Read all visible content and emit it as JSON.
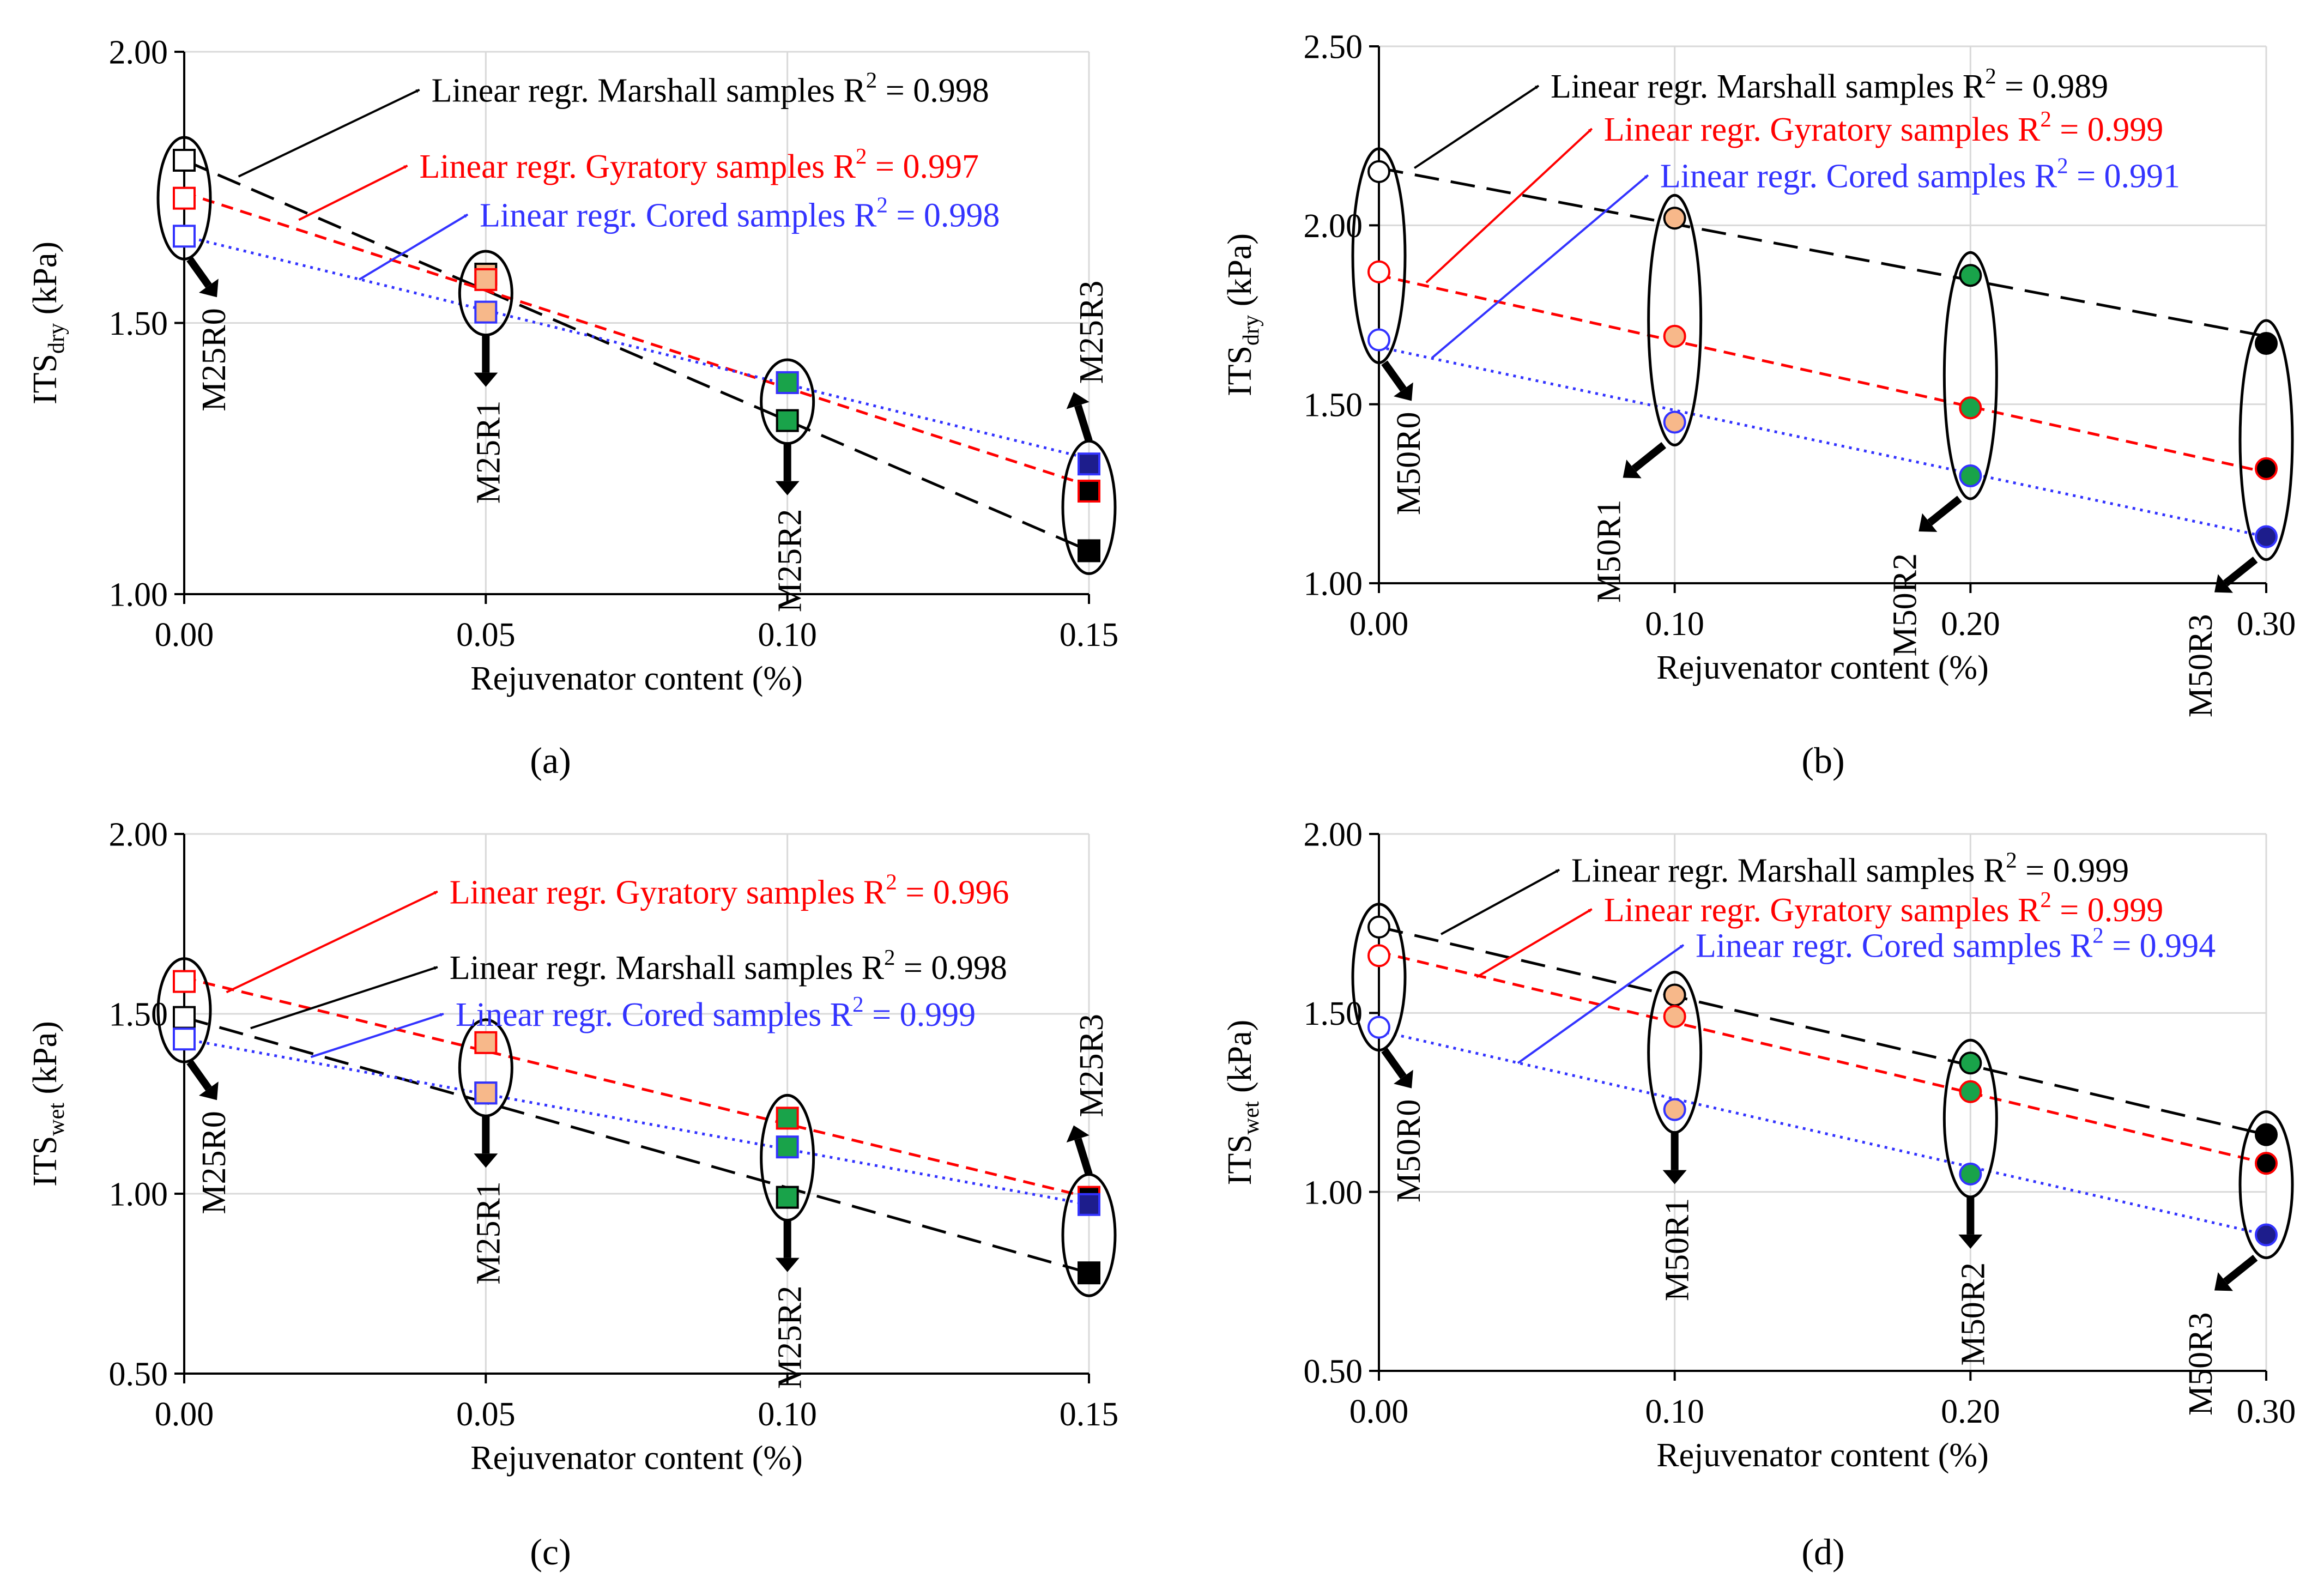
{
  "chart_data": [
    {
      "panel": "a",
      "caption": "(a)",
      "type": "scatter",
      "xlabel": "Rejuvenator content (%)",
      "ylabel_main": "ITS",
      "ylabel_sub": "dry",
      "ylabel_unit": " (kPa)",
      "xlim": [
        0,
        0.15
      ],
      "ylim": [
        1.0,
        2.0
      ],
      "x_ticks": [
        0.0,
        0.05,
        0.1,
        0.15
      ],
      "x_tick_labels": [
        "0.00",
        "0.05",
        "0.10",
        "0.15"
      ],
      "y_ticks": [
        1.0,
        1.5,
        2.0
      ],
      "y_tick_labels": [
        "1.00",
        "1.50",
        "2.00"
      ],
      "grid": true,
      "marker": "square",
      "series": [
        {
          "key": "marshall",
          "color": "#000000",
          "dash": "45,22",
          "x": [
            0,
            0.05,
            0.1,
            0.15
          ],
          "y": [
            1.8,
            1.59,
            1.32,
            1.08
          ],
          "fit": [
            1.8,
            1.08
          ]
        },
        {
          "key": "gyratory",
          "color": "#ff0000",
          "dash": "22,14",
          "x": [
            0,
            0.05,
            0.1,
            0.15
          ],
          "y": [
            1.73,
            1.58,
            1.39,
            1.19
          ],
          "fit": [
            1.74,
            1.2
          ]
        },
        {
          "key": "cored",
          "color": "#3333ff",
          "dash": "5,9",
          "x": [
            0,
            0.05,
            0.1,
            0.15
          ],
          "y": [
            1.66,
            1.52,
            1.39,
            1.24
          ],
          "fit": [
            1.66,
            1.25
          ]
        }
      ],
      "mixes": [
        {
          "label": "M25R0",
          "x": 0,
          "ellipse": [
            1.8,
            1.66
          ],
          "arrow": "down-right"
        },
        {
          "label": "M25R1",
          "x": 0.05,
          "ellipse": [
            1.59,
            1.52
          ],
          "arrow": "down"
        },
        {
          "label": "M25R2",
          "x": 0.1,
          "ellipse": [
            1.39,
            1.32
          ],
          "arrow": "down"
        },
        {
          "label": "M25R3",
          "x": 0.15,
          "ellipse": [
            1.24,
            1.08
          ],
          "arrow": "up"
        }
      ],
      "annotations": [
        {
          "series": "marshall",
          "text": "Linear regr. Marshall samples R",
          "r2": "0.998",
          "from": [
            0.009,
            1.77
          ],
          "to": [
            0.039,
            1.93
          ]
        },
        {
          "series": "gyratory",
          "text": "Linear regr. Gyratory samples R",
          "r2": "0.997",
          "from": [
            0.019,
            1.69
          ],
          "to": [
            0.037,
            1.79
          ]
        },
        {
          "series": "cored",
          "text": "Linear regr. Cored samples R",
          "r2": "0.998",
          "from": [
            0.029,
            1.58
          ],
          "to": [
            0.047,
            1.7
          ]
        }
      ]
    },
    {
      "panel": "b",
      "caption": "(b)",
      "type": "scatter",
      "xlabel": "Rejuvenator content (%)",
      "ylabel_main": "ITS",
      "ylabel_sub": "dry",
      "ylabel_unit": " (kPa)",
      "xlim": [
        0,
        0.3
      ],
      "ylim": [
        1.0,
        2.5
      ],
      "x_ticks": [
        0.0,
        0.1,
        0.2,
        0.3
      ],
      "x_tick_labels": [
        "0.00",
        "0.10",
        "0.20",
        "0.30"
      ],
      "y_ticks": [
        1.0,
        1.5,
        2.0,
        2.5
      ],
      "y_tick_labels": [
        "1.00",
        "1.50",
        "2.00",
        "2.50"
      ],
      "grid": true,
      "marker": "circle",
      "series": [
        {
          "key": "marshall",
          "color": "#000000",
          "dash": "45,22",
          "x": [
            0,
            0.1,
            0.2,
            0.3
          ],
          "y": [
            2.15,
            2.02,
            1.86,
            1.67
          ],
          "fit": [
            2.16,
            1.69
          ]
        },
        {
          "key": "gyratory",
          "color": "#ff0000",
          "dash": "22,14",
          "x": [
            0,
            0.1,
            0.2,
            0.3
          ],
          "y": [
            1.87,
            1.69,
            1.49,
            1.32
          ],
          "fit": [
            1.86,
            1.31
          ]
        },
        {
          "key": "cored",
          "color": "#3333ff",
          "dash": "5,9",
          "x": [
            0,
            0.1,
            0.2,
            0.3
          ],
          "y": [
            1.68,
            1.45,
            1.3,
            1.13
          ],
          "fit": [
            1.66,
            1.13
          ]
        }
      ],
      "mixes": [
        {
          "label": "M50R0",
          "x": 0,
          "ellipse": [
            2.15,
            1.68
          ],
          "arrow": "down-right"
        },
        {
          "label": "M50R1",
          "x": 0.1,
          "ellipse": [
            2.02,
            1.45
          ],
          "arrow": "down-left"
        },
        {
          "label": "M50R2",
          "x": 0.2,
          "ellipse": [
            1.86,
            1.3
          ],
          "arrow": "down-left"
        },
        {
          "label": "M50R3",
          "x": 0.3,
          "ellipse": [
            1.67,
            1.13
          ],
          "arrow": "down-left"
        }
      ],
      "annotations": [
        {
          "series": "marshall",
          "text": "Linear regr. Marshall samples R",
          "r2": "0.989",
          "from": [
            0.012,
            2.16
          ],
          "to": [
            0.054,
            2.39
          ]
        },
        {
          "series": "gyratory",
          "text": "Linear regr. Gyratory samples R",
          "r2": "0.999",
          "from": [
            0.016,
            1.84
          ],
          "to": [
            0.072,
            2.27
          ]
        },
        {
          "series": "cored",
          "text": "Linear regr. Cored samples R",
          "r2": "0.991",
          "from": [
            0.018,
            1.63
          ],
          "to": [
            0.091,
            2.14
          ]
        }
      ]
    },
    {
      "panel": "c",
      "caption": "(c)",
      "type": "scatter",
      "xlabel": "Rejuvenator content (%)",
      "ylabel_main": "ITS",
      "ylabel_sub": "wet",
      "ylabel_unit": " (kPa)",
      "xlim": [
        0,
        0.15
      ],
      "ylim": [
        0.5,
        2.0
      ],
      "x_ticks": [
        0.0,
        0.05,
        0.1,
        0.15
      ],
      "x_tick_labels": [
        "0.00",
        "0.05",
        "0.10",
        "0.15"
      ],
      "y_ticks": [
        0.5,
        1.0,
        1.5,
        2.0
      ],
      "y_tick_labels": [
        "0.50",
        "1.00",
        "1.50",
        "2.00"
      ],
      "grid": true,
      "marker": "square",
      "series": [
        {
          "key": "gyratory",
          "color": "#ff0000",
          "dash": "22,14",
          "x": [
            0,
            0.05,
            0.1,
            0.15
          ],
          "y": [
            1.59,
            1.42,
            1.21,
            0.99
          ],
          "fit": [
            1.6,
            0.99
          ]
        },
        {
          "key": "marshall",
          "color": "#000000",
          "dash": "45,22",
          "x": [
            0,
            0.05,
            0.1,
            0.15
          ],
          "y": [
            1.49,
            1.28,
            0.99,
            0.78
          ],
          "fit": [
            1.49,
            0.78
          ]
        },
        {
          "key": "cored",
          "color": "#3333ff",
          "dash": "5,9",
          "x": [
            0,
            0.05,
            0.1,
            0.15
          ],
          "y": [
            1.43,
            1.28,
            1.13,
            0.97
          ],
          "fit": [
            1.43,
            0.97
          ]
        }
      ],
      "mixes": [
        {
          "label": "M25R0",
          "x": 0,
          "ellipse": [
            1.59,
            1.43
          ],
          "arrow": "down-right"
        },
        {
          "label": "M25R1",
          "x": 0.05,
          "ellipse": [
            1.42,
            1.28
          ],
          "arrow": "down"
        },
        {
          "label": "M25R2",
          "x": 0.1,
          "ellipse": [
            1.21,
            0.99
          ],
          "arrow": "down"
        },
        {
          "label": "M25R3",
          "x": 0.15,
          "ellipse": [
            0.99,
            0.78
          ],
          "arrow": "up"
        }
      ],
      "annotations": [
        {
          "series": "gyratory",
          "text": "Linear regr. Gyratory samples R",
          "r2": "0.996",
          "from": [
            0.007,
            1.56
          ],
          "to": [
            0.042,
            1.84
          ]
        },
        {
          "series": "marshall",
          "text": "Linear regr. Marshall samples R",
          "r2": "0.998",
          "from": [
            0.011,
            1.46
          ],
          "to": [
            0.042,
            1.63
          ]
        },
        {
          "series": "cored",
          "text": "Linear regr. Cored samples R",
          "r2": "0.999",
          "from": [
            0.021,
            1.38
          ],
          "to": [
            0.043,
            1.5
          ]
        }
      ]
    },
    {
      "panel": "d",
      "caption": "(d)",
      "type": "scatter",
      "xlabel": "Rejuvenator content (%)",
      "ylabel_main": "ITS",
      "ylabel_sub": "wet",
      "ylabel_unit": " (kPa)",
      "xlim": [
        0,
        0.3
      ],
      "ylim": [
        0.5,
        2.0
      ],
      "x_ticks": [
        0.0,
        0.1,
        0.2,
        0.3
      ],
      "x_tick_labels": [
        "0.00",
        "0.10",
        "0.20",
        "0.30"
      ],
      "y_ticks": [
        0.5,
        1.0,
        1.5,
        2.0
      ],
      "y_tick_labels": [
        "0.50",
        "1.00",
        "1.50",
        "2.00"
      ],
      "grid": true,
      "marker": "circle",
      "series": [
        {
          "key": "marshall",
          "color": "#000000",
          "dash": "45,22",
          "x": [
            0,
            0.1,
            0.2,
            0.3
          ],
          "y": [
            1.74,
            1.55,
            1.36,
            1.16
          ],
          "fit": [
            1.74,
            1.16
          ]
        },
        {
          "key": "gyratory",
          "color": "#ff0000",
          "dash": "22,14",
          "x": [
            0,
            0.1,
            0.2,
            0.3
          ],
          "y": [
            1.66,
            1.49,
            1.28,
            1.08
          ],
          "fit": [
            1.67,
            1.08
          ]
        },
        {
          "key": "cored",
          "color": "#3333ff",
          "dash": "5,9",
          "x": [
            0,
            0.1,
            0.2,
            0.3
          ],
          "y": [
            1.46,
            1.23,
            1.05,
            0.88
          ],
          "fit": [
            1.45,
            0.88
          ]
        }
      ],
      "mixes": [
        {
          "label": "M50R0",
          "x": 0,
          "ellipse": [
            1.74,
            1.46
          ],
          "arrow": "down-right"
        },
        {
          "label": "M50R1",
          "x": 0.1,
          "ellipse": [
            1.55,
            1.23
          ],
          "arrow": "down"
        },
        {
          "label": "M50R2",
          "x": 0.2,
          "ellipse": [
            1.36,
            1.05
          ],
          "arrow": "down"
        },
        {
          "label": "M50R3",
          "x": 0.3,
          "ellipse": [
            1.16,
            0.88
          ],
          "arrow": "down-left"
        }
      ],
      "annotations": [
        {
          "series": "marshall",
          "text": "Linear regr. Marshall samples R",
          "r2": "0.999",
          "from": [
            0.021,
            1.72
          ],
          "to": [
            0.061,
            1.9
          ]
        },
        {
          "series": "gyratory",
          "text": "Linear regr. Gyratory samples R",
          "r2": "0.999",
          "from": [
            0.033,
            1.6
          ],
          "to": [
            0.072,
            1.79
          ]
        },
        {
          "series": "cored",
          "text": "Linear regr. Cored samples R",
          "r2": "0.994",
          "from": [
            0.047,
            1.36
          ],
          "to": [
            0.103,
            1.69
          ]
        }
      ]
    }
  ]
}
